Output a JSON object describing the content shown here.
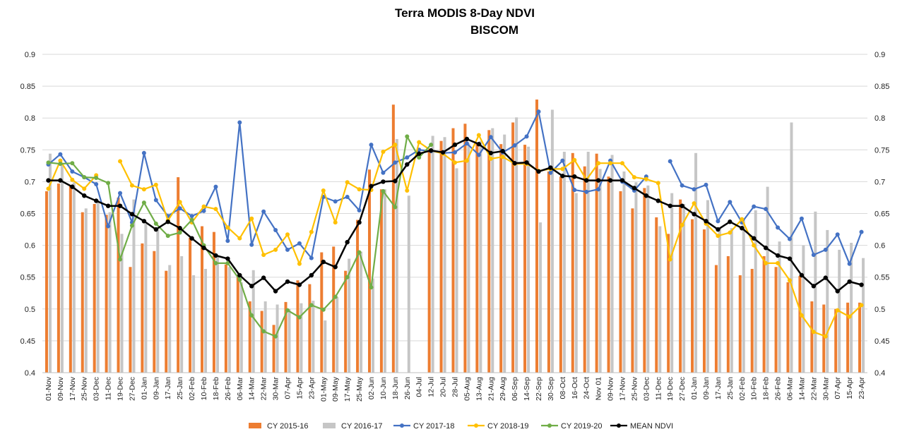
{
  "chart_data": {
    "type": "bar+line",
    "title": "Terra MODIS 8-Day  NDVI",
    "subtitle": "BISCOM",
    "xlabel": "",
    "ylabel": "",
    "ylim": [
      0.4,
      0.9
    ],
    "yticks": [
      "0.4",
      "0.45",
      "0.5",
      "0.55",
      "0.6",
      "0.65",
      "0.7",
      "0.75",
      "0.8",
      "0.85",
      "0.9"
    ],
    "grid": true,
    "legend_position": "bottom",
    "categories": [
      "01-Nov",
      "09-Nov",
      "17-Nov",
      "25-Nov",
      "03-Dec",
      "11-Dec",
      "19-Dec",
      "27-Dec",
      "01-Jan",
      "09-Jan",
      "17-Jan",
      "25-Jan",
      "02-Feb",
      "10-Feb",
      "18-Feb",
      "26-Feb",
      "06-Mar",
      "14-Mar",
      "22-Mar",
      "30-Mar",
      "07-Apr",
      "15-Apr",
      "23-Apr",
      "01-May",
      "09-May",
      "17-May",
      "25-May",
      "02-Jun",
      "10-Jun",
      "18-Jun",
      "26-Jun",
      "04-Jul",
      "12-Jul",
      "20-Jul",
      "28-Jul",
      "05-Aug",
      "13-Aug",
      "21-Aug",
      "29-Aug",
      "06-Sep",
      "14-Sep",
      "22-Sep",
      "30-Sep",
      "08-Oct",
      "16-Oct",
      "24-Oct",
      "Nov 01",
      "09-Nov",
      "17-Nov",
      "25-Nov",
      "03-Dec",
      "11-Dec",
      "19-Dec",
      "27-Dec",
      "01-Jan",
      "09-Jan",
      "17-Jan",
      "25-Jan",
      "02-Feb",
      "10-Feb",
      "18-Feb",
      "26-Feb",
      "06-Mar",
      "14-Mar",
      "22-Mar",
      "30-Mar",
      "07-Apr",
      "15-Apr",
      "23-Apr"
    ],
    "series": [
      {
        "name": "CY 2015-16",
        "kind": "bar",
        "color": "#ED7D31",
        "values": [
          0.685,
          0.697,
          0.693,
          0.652,
          0.665,
          0.648,
          0.675,
          0.566,
          0.603,
          0.591,
          0.56,
          0.707,
          0.612,
          0.63,
          0.621,
          0.57,
          0.55,
          0.512,
          0.497,
          0.475,
          0.511,
          0.545,
          0.539,
          0.589,
          0.598,
          0.56,
          0.64,
          0.719,
          0.688,
          0.821,
          null,
          null,
          0.75,
          0.764,
          0.784,
          0.791,
          0.761,
          0.781,
          0.759,
          0.793,
          0.758,
          0.829,
          0.716,
          0.708,
          0.745,
          0.724,
          0.744,
          0.708,
          0.685,
          0.658,
          0.69,
          0.644,
          0.618,
          0.672,
          0.641,
          0.625,
          0.569,
          0.583,
          0.553,
          0.563,
          0.583,
          0.566,
          0.542,
          0.552,
          0.512,
          0.507,
          0.5,
          0.51,
          0.51
        ]
      },
      {
        "name": "CY 2016-17",
        "kind": "bar",
        "color": "#C6C6C6",
        "values": [
          0.744,
          0.728,
          0.699,
          0.658,
          0.671,
          0.652,
          0.618,
          0.672,
          0.634,
          0.625,
          0.569,
          0.583,
          0.553,
          0.563,
          0.583,
          0.566,
          0.542,
          0.561,
          0.512,
          0.507,
          0.5,
          0.509,
          0.513,
          0.482,
          0.519,
          0.579,
          0.59,
          0.548,
          0.688,
          0.767,
          0.678,
          null,
          0.772,
          0.77,
          0.721,
          0.76,
          0.764,
          0.784,
          0.774,
          0.801,
          0.755,
          0.636,
          0.813,
          0.747,
          0.682,
          0.747,
          0.72,
          0.742,
          0.716,
          0.699,
          0.694,
          0.63,
          0.682,
          0.665,
          0.745,
          0.671,
          0.627,
          0.627,
          0.64,
          0.655,
          0.692,
          0.606,
          0.793,
          0.6,
          0.653,
          0.624,
          0.593,
          0.604,
          0.58
        ]
      },
      {
        "name": "CY 2017-18",
        "kind": "line",
        "color": "#4472C4",
        "values": [
          0.727,
          0.743,
          0.716,
          0.707,
          0.696,
          0.63,
          0.682,
          0.636,
          0.745,
          0.671,
          0.646,
          0.658,
          0.646,
          0.654,
          0.692,
          0.607,
          0.793,
          0.601,
          0.653,
          0.624,
          0.593,
          0.603,
          0.58,
          0.676,
          0.669,
          0.676,
          0.655,
          0.758,
          0.714,
          0.73,
          0.738,
          0.75,
          0.748,
          0.745,
          0.746,
          0.76,
          0.742,
          0.77,
          0.746,
          0.757,
          0.771,
          0.81,
          0.714,
          0.733,
          0.687,
          0.684,
          0.688,
          0.733,
          0.7,
          0.686,
          0.708,
          null,
          0.732,
          0.694,
          0.688,
          0.695,
          0.638,
          0.668,
          0.636,
          0.661,
          0.657,
          0.628,
          0.61,
          0.642,
          0.585,
          0.593,
          0.617,
          0.571,
          0.621
        ]
      },
      {
        "name": "CY 2018-19",
        "kind": "line",
        "color": "#FFC000",
        "values": [
          0.689,
          0.733,
          0.703,
          0.689,
          0.71,
          null,
          0.732,
          0.694,
          0.688,
          0.695,
          0.639,
          0.668,
          0.636,
          0.661,
          0.657,
          0.628,
          0.611,
          0.642,
          0.585,
          0.593,
          0.617,
          0.571,
          0.621,
          0.686,
          0.636,
          0.699,
          0.688,
          0.687,
          0.747,
          0.758,
          0.686,
          0.762,
          0.749,
          0.744,
          0.73,
          0.733,
          0.773,
          0.736,
          0.739,
          0.728,
          0.728,
          0.717,
          0.72,
          0.72,
          0.734,
          0.703,
          0.729,
          0.729,
          0.729,
          0.707,
          0.704,
          0.698,
          0.578,
          0.632,
          0.666,
          0.634,
          0.615,
          0.62,
          0.641,
          0.6,
          0.572,
          0.572,
          0.545,
          0.49,
          0.464,
          0.457,
          0.498,
          0.488,
          0.506
        ]
      },
      {
        "name": "CY 2019-20",
        "kind": "line",
        "color": "#70AD47",
        "values": [
          0.73,
          0.728,
          0.729,
          0.707,
          0.706,
          0.698,
          0.578,
          0.631,
          0.667,
          0.634,
          0.615,
          0.62,
          0.64,
          0.6,
          0.572,
          0.572,
          0.546,
          0.49,
          0.465,
          0.457,
          0.498,
          0.487,
          0.506,
          0.499,
          0.519,
          0.55,
          0.589,
          0.534,
          0.685,
          0.66,
          0.771,
          0.738,
          0.758,
          null,
          null,
          null,
          null,
          null,
          null,
          null,
          null,
          null,
          null,
          null,
          null,
          null,
          null,
          null,
          null,
          null,
          null,
          null,
          null,
          null,
          null,
          null,
          null,
          null,
          null,
          null,
          null,
          null,
          null,
          null,
          null,
          null,
          null,
          null,
          null
        ]
      },
      {
        "name": "MEAN NDVI",
        "kind": "line",
        "color": "#000000",
        "values": [
          0.702,
          0.702,
          0.692,
          0.678,
          0.67,
          0.662,
          0.662,
          0.649,
          0.638,
          0.625,
          0.637,
          0.627,
          0.611,
          0.596,
          0.584,
          0.579,
          0.553,
          0.536,
          0.549,
          0.528,
          0.543,
          0.538,
          0.553,
          0.574,
          0.566,
          0.605,
          0.636,
          0.693,
          0.7,
          0.701,
          0.727,
          0.744,
          0.749,
          0.746,
          0.758,
          0.767,
          0.759,
          0.745,
          0.748,
          0.729,
          0.73,
          0.716,
          0.722,
          0.709,
          0.708,
          0.702,
          0.702,
          0.702,
          0.702,
          0.69,
          0.678,
          0.67,
          0.662,
          0.662,
          0.649,
          0.638,
          0.625,
          0.637,
          0.627,
          0.611,
          0.596,
          0.584,
          0.579,
          0.553,
          0.536,
          0.549,
          0.528,
          0.543,
          0.538
        ]
      }
    ]
  }
}
